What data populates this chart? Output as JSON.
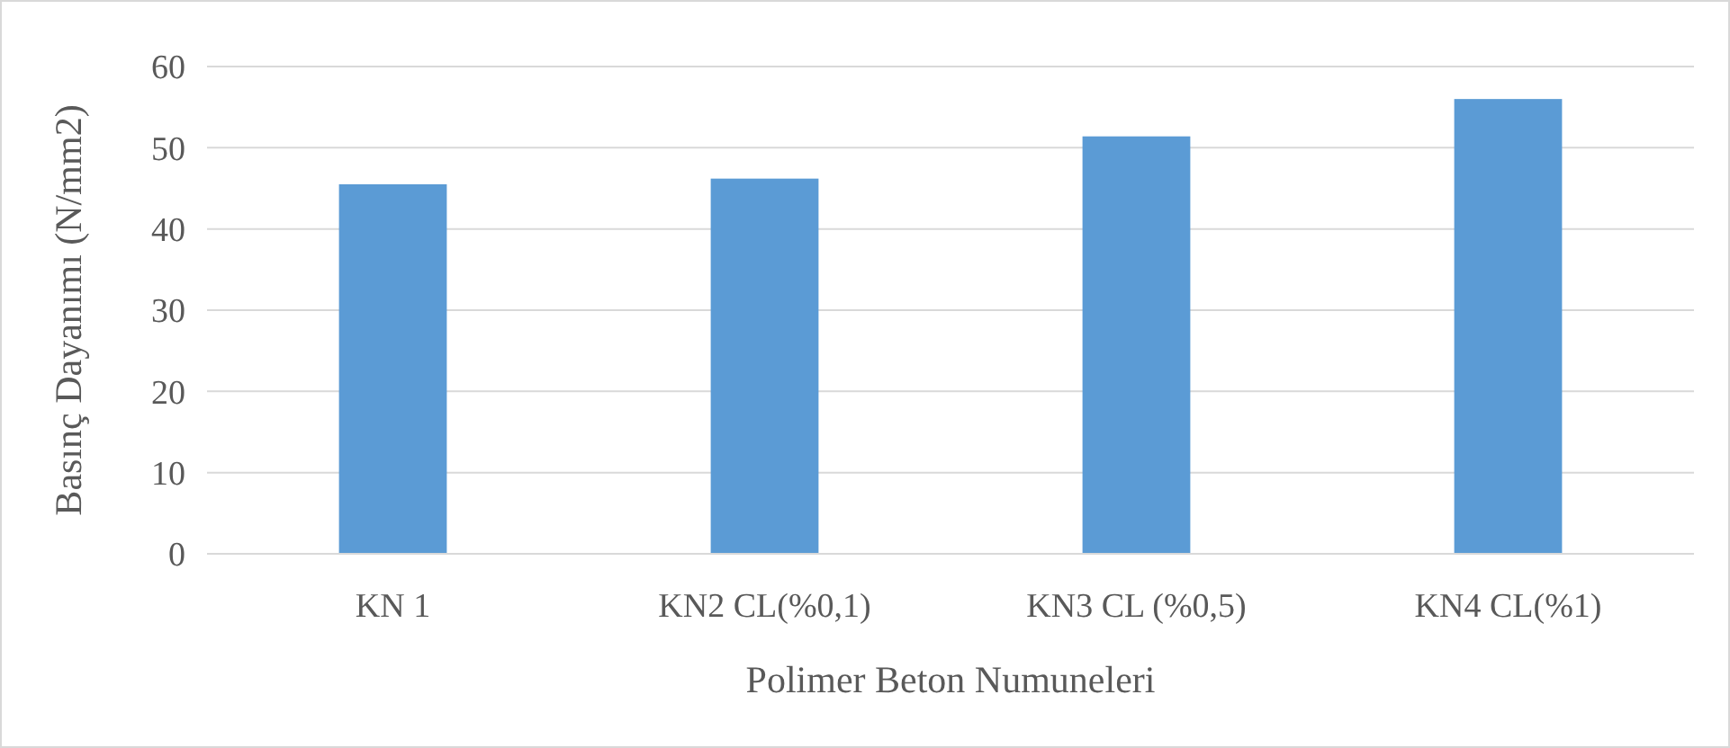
{
  "chart_data": {
    "type": "bar",
    "xlabel": "Polimer Beton Numuneleri",
    "ylabel": "Basınç Dayanımı (N/mm2)",
    "categories": [
      "KN 1",
      "KN2 CL(%0,1)",
      "KN3 CL (%0,5)",
      "KN4 CL(%1)"
    ],
    "values": [
      45.5,
      46.2,
      51.4,
      56.0
    ],
    "color": "#5b9bd5",
    "ylim": [
      0,
      60
    ],
    "yticks": [
      0,
      10,
      20,
      30,
      40,
      50,
      60
    ],
    "grid": "y"
  }
}
